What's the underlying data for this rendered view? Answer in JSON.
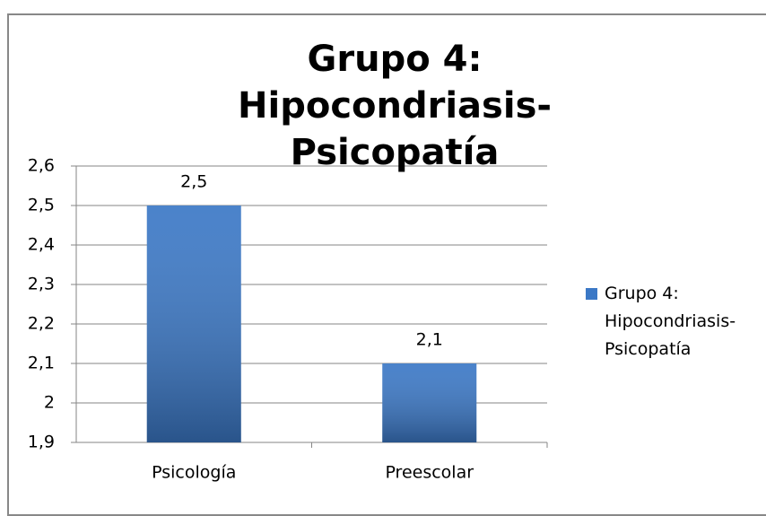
{
  "chart_data": {
    "type": "bar",
    "title": "Grupo 4: Hipocondriasis-Psicopatía",
    "categories": [
      "Psicología",
      "Preescolar"
    ],
    "series": [
      {
        "name": "Grupo 4: Hipocondriasis-Psicopatía",
        "color": "#3b78c6",
        "values": [
          2.5,
          2.1
        ],
        "value_labels": [
          "2,5",
          "2,1"
        ]
      }
    ],
    "ylim": [
      1.9,
      2.6
    ],
    "yticks": [
      {
        "value": 1.9,
        "label": "1,9"
      },
      {
        "value": 2,
        "label": "2"
      },
      {
        "value": 2.1,
        "label": "2,1"
      },
      {
        "value": 2.2,
        "label": "2,2"
      },
      {
        "value": 2.3,
        "label": "2,3"
      },
      {
        "value": 2.4,
        "label": "2,4"
      },
      {
        "value": 2.5,
        "label": "2,5"
      },
      {
        "value": 2.6,
        "label": "2,6"
      }
    ],
    "grid": true,
    "legend": "right"
  }
}
